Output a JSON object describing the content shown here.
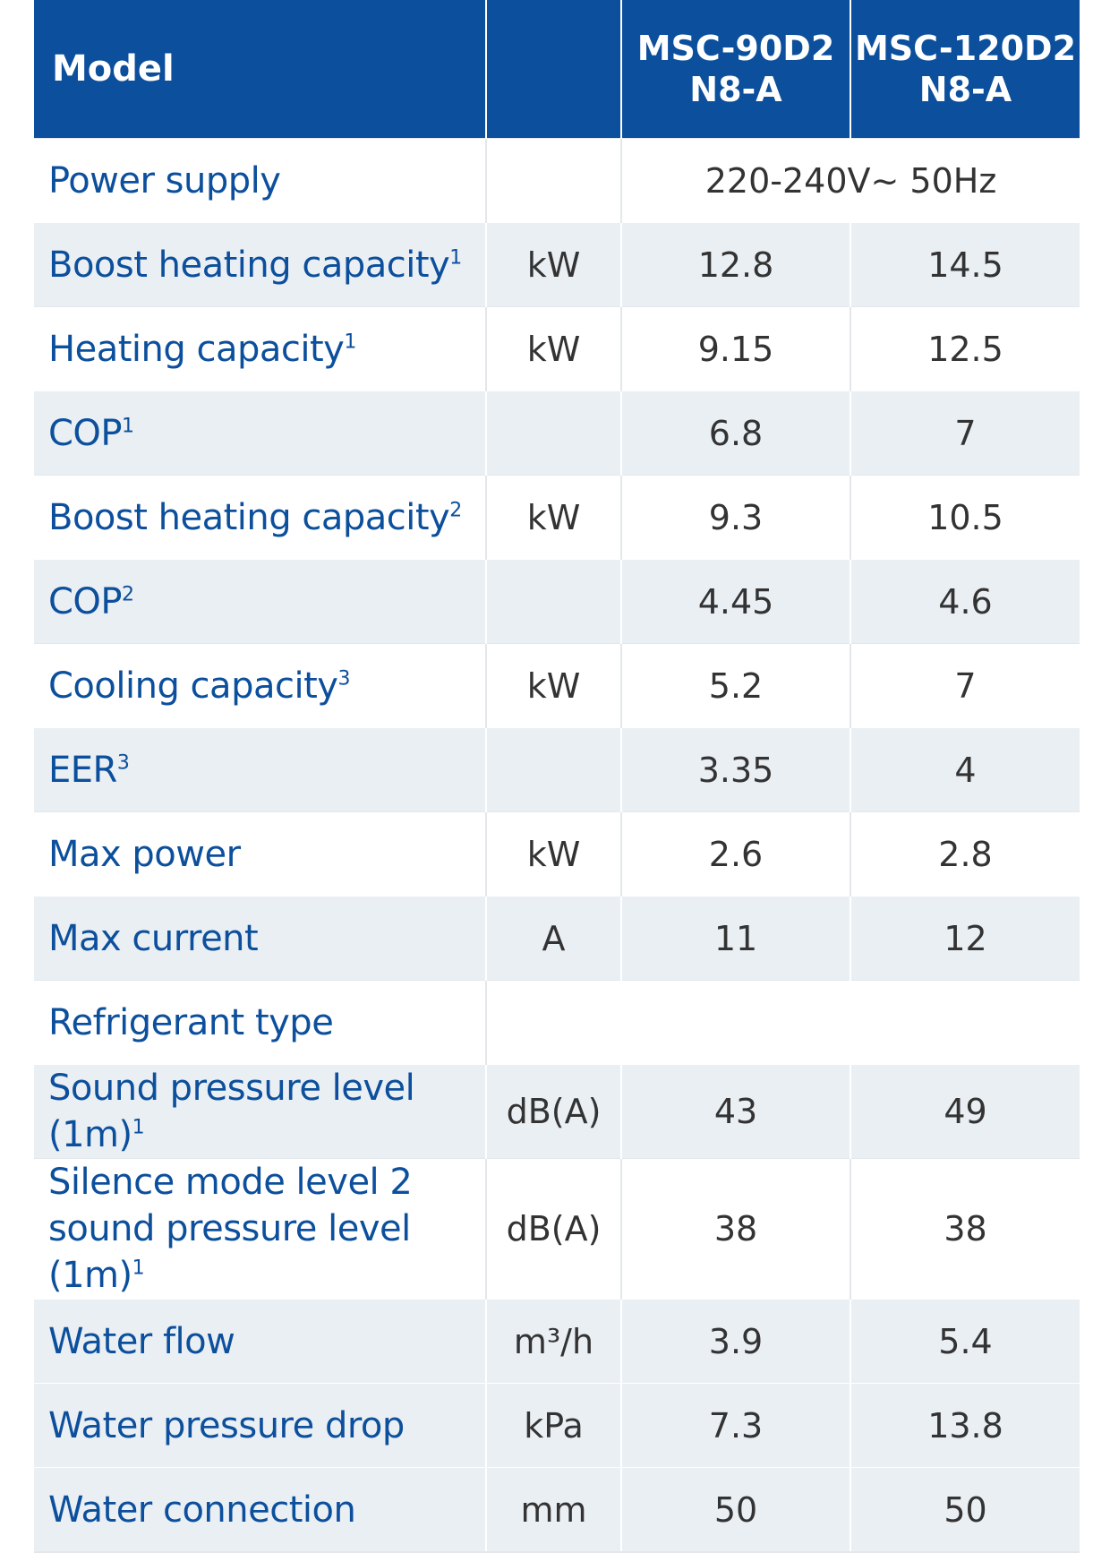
{
  "header": {
    "label": "Model",
    "unit": "",
    "models": [
      [
        "MSC-90D2",
        "N8-A"
      ],
      [
        "MSC-120D2",
        "N8-A"
      ]
    ]
  },
  "rows": [
    {
      "label": "Power supply",
      "sup": "",
      "unit": "",
      "span_value": "220-240V~ 50Hz"
    },
    {
      "label": "Boost heating capacity",
      "sup": "1",
      "unit": "kW",
      "values": [
        "12.8",
        "14.5"
      ]
    },
    {
      "label": "Heating capacity",
      "sup": "1",
      "unit": "kW",
      "values": [
        "9.15",
        "12.5"
      ]
    },
    {
      "label": "COP",
      "sup": "1",
      "unit": "",
      "values": [
        "6.8",
        "7"
      ]
    },
    {
      "label": "Boost heating capacity",
      "sup": "2",
      "unit": "kW",
      "values": [
        "9.3",
        "10.5"
      ]
    },
    {
      "label": "COP",
      "sup": "2",
      "unit": "",
      "values": [
        "4.45",
        "4.6"
      ]
    },
    {
      "label": "Cooling capacity",
      "sup": "3",
      "unit": "kW",
      "values": [
        "5.2",
        "7"
      ]
    },
    {
      "label": "EER",
      "sup": "3",
      "unit": "",
      "values": [
        "3.35",
        "4"
      ]
    },
    {
      "label": "Max power",
      "sup": "",
      "unit": "kW",
      "values": [
        "2.6",
        "2.8"
      ]
    },
    {
      "label": "Max current",
      "sup": "",
      "unit": "A",
      "values": [
        "11",
        "12"
      ]
    },
    {
      "label": "Refrigerant type",
      "sup": "",
      "unit": "",
      "span_value": ""
    },
    {
      "label": "Sound pressure level (1m)",
      "sup": "1",
      "unit": "dB(A)",
      "values": [
        "43",
        "49"
      ]
    },
    {
      "label_lines": [
        "Silence mode level 2",
        "sound pressure level (1m)"
      ],
      "sup": "1",
      "unit": "dB(A)",
      "values": [
        "38",
        "38"
      ]
    },
    {
      "label": "Water flow",
      "sup": "",
      "unit": "m³/h",
      "values": [
        "3.9",
        "5.4"
      ]
    },
    {
      "label": "Water pressure drop",
      "sup": "",
      "unit": "kPa",
      "values": [
        "7.3",
        "13.8"
      ]
    },
    {
      "label": "Water connection",
      "sup": "",
      "unit": "mm",
      "values": [
        "50",
        "50"
      ]
    }
  ]
}
